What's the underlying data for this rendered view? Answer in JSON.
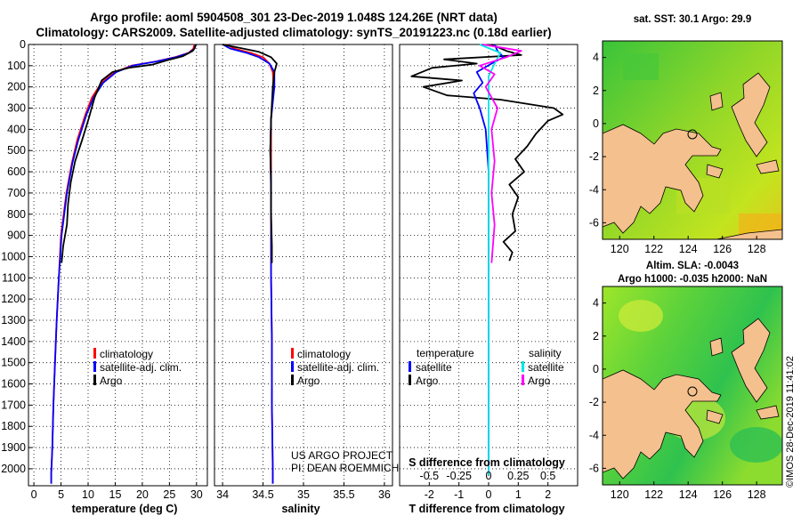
{
  "header": {
    "title_line1": "Argo profile: aoml 5904508_301 23-Dec-2019 1.048S 124.26E (NRT data)",
    "title_line2": "Climatology: CARS2009. Satellite-adjusted climatology: synTS_20191223.nc (0.18d earlier)"
  },
  "colors": {
    "climatology": "#ff0000",
    "satellite": "#0000ff",
    "argo": "#000000",
    "sal_satellite": "#00e5e5",
    "sal_argo": "#ff00ff",
    "land": "#f4c08e"
  },
  "chart_data": [
    {
      "type": "line",
      "title": "",
      "xlabel": "temperature (deg C)",
      "ylabel": "",
      "xlim": [
        -1,
        32
      ],
      "ylim": [
        2080,
        0
      ],
      "xticks": [
        0,
        5,
        10,
        15,
        20,
        25,
        30
      ],
      "yticks": [
        0,
        100,
        200,
        300,
        400,
        500,
        600,
        700,
        800,
        900,
        1000,
        1100,
        1200,
        1300,
        1400,
        1500,
        1600,
        1700,
        1800,
        1900,
        2000
      ],
      "ytick_labels": [
        "0",
        "100",
        "200",
        "300",
        "400",
        "500",
        "600",
        "700",
        "800",
        "900",
        "1000",
        "1100",
        "1200",
        "1300",
        "1400",
        "1500",
        "1600",
        "1700",
        "1800",
        "1900",
        "2000"
      ],
      "series": [
        {
          "name": "climatology",
          "x": [
            29.6,
            29.4,
            28.5,
            26,
            22.5,
            18,
            15,
            12.5,
            10.7,
            9.5,
            8,
            7,
            6,
            5,
            4.6,
            4.2,
            3.9,
            3.6,
            3.4,
            3.2,
            3.2
          ],
          "y": [
            0,
            20,
            40,
            60,
            80,
            100,
            130,
            180,
            250,
            330,
            450,
            560,
            700,
            900,
            1100,
            1300,
            1500,
            1700,
            1900,
            2020,
            2070
          ]
        },
        {
          "name": "satellite-adj. clim.",
          "x": [
            29.8,
            29.6,
            28.6,
            26.2,
            22.6,
            18.2,
            15.2,
            12.8,
            11,
            9.7,
            8.2,
            7.1,
            6.1,
            5.1,
            4.6,
            4.2,
            3.9,
            3.6,
            3.4,
            3.2,
            3.2
          ],
          "y": [
            0,
            20,
            40,
            60,
            80,
            100,
            130,
            180,
            250,
            330,
            450,
            560,
            700,
            900,
            1100,
            1300,
            1500,
            1700,
            1900,
            2020,
            2070
          ]
        },
        {
          "name": "Argo",
          "x": [
            29.9,
            29.7,
            29.3,
            27.5,
            24.5,
            21.8,
            17.5,
            14.5,
            12.5,
            11.2,
            10.1,
            8.9,
            7.6,
            6.8,
            6.3,
            6.1,
            5.4,
            5.1
          ],
          "y": [
            0,
            15,
            30,
            55,
            75,
            95,
            110,
            130,
            170,
            250,
            350,
            450,
            550,
            650,
            750,
            850,
            950,
            1030
          ]
        }
      ],
      "legend": [
        "climatology",
        "satellite-adj. clim.",
        "Argo"
      ],
      "legend_position": "bottom-right"
    },
    {
      "type": "line",
      "title": "",
      "xlabel": "salinity",
      "ylabel": "",
      "xlim": [
        33.9,
        36.1
      ],
      "ylim": [
        2080,
        0
      ],
      "xticks": [
        34,
        34.5,
        35,
        35.5,
        36
      ],
      "series": [
        {
          "name": "climatology",
          "x": [
            34.05,
            34.15,
            34.35,
            34.5,
            34.58,
            34.62,
            34.63,
            34.6,
            34.6,
            34.6,
            34.6,
            34.6,
            34.61,
            34.61,
            34.62,
            34.62
          ],
          "y": [
            0,
            20,
            40,
            60,
            90,
            130,
            200,
            350,
            500,
            700,
            900,
            1100,
            1400,
            1700,
            2000,
            2070
          ]
        },
        {
          "name": "satellite-adj. clim.",
          "x": [
            34.0,
            34.1,
            34.3,
            34.45,
            34.58,
            34.64,
            34.64,
            34.6,
            34.59,
            34.6,
            34.6,
            34.6,
            34.61,
            34.61,
            34.62,
            34.62
          ],
          "y": [
            0,
            20,
            40,
            60,
            90,
            130,
            200,
            350,
            500,
            700,
            900,
            1100,
            1400,
            1700,
            2000,
            2070
          ]
        },
        {
          "name": "Argo",
          "x": [
            34.0,
            34.2,
            34.45,
            34.6,
            34.67,
            34.64,
            34.62,
            34.6,
            34.59,
            34.6,
            34.6,
            34.61,
            34.61
          ],
          "y": [
            0,
            15,
            35,
            60,
            90,
            130,
            200,
            350,
            500,
            650,
            800,
            950,
            1030
          ]
        }
      ],
      "legend": [
        "climatology",
        "satellite-adj. clim.",
        "Argo"
      ],
      "legend_position": "bottom-right",
      "credit_line1": "US ARGO PROJECT",
      "credit_line2": "PI: DEAN ROEMMICH"
    },
    {
      "type": "line",
      "title": "",
      "xlabel": "T difference from climatology",
      "top_xlabel": "S difference from climatology",
      "xlim": [
        -3,
        3
      ],
      "ylim": [
        2080,
        0
      ],
      "xticks": [
        -2,
        -1,
        0,
        1,
        2
      ],
      "top_xtick_labels": [
        "-0.5",
        "-0.25",
        "0",
        "0.25",
        "0.5"
      ],
      "top_xticks_in_t_units": [
        -2,
        -1,
        0,
        1,
        2
      ],
      "series": [
        {
          "name": "temperature Argo",
          "x": [
            0.1,
            0.6,
            1.1,
            -1.5,
            -0.4,
            -1.9,
            -2.6,
            -0.9,
            -2.2,
            -1.4,
            0.4,
            2.2,
            2.5,
            2.0,
            1.6,
            1.3,
            0.9,
            1.2,
            0.7,
            1.0,
            0.8,
            0.9,
            0.5,
            0.8,
            0.7
          ],
          "y": [
            0,
            30,
            50,
            70,
            90,
            110,
            150,
            170,
            200,
            240,
            260,
            300,
            330,
            360,
            420,
            480,
            540,
            600,
            660,
            720,
            800,
            880,
            930,
            980,
            1020
          ]
        },
        {
          "name": "temperature satellite",
          "x": [
            0.2,
            0.3,
            0.5,
            0.1,
            -0.4,
            -0.2,
            -0.5,
            -0.3,
            -0.1,
            0,
            0,
            0,
            0,
            0,
            0
          ],
          "y": [
            0,
            30,
            60,
            90,
            130,
            180,
            230,
            300,
            400,
            600,
            900,
            1200,
            1500,
            1800,
            2030
          ]
        },
        {
          "name": "salinity satellite",
          "x": [
            -0.3,
            0.4,
            0.2,
            0,
            0,
            0,
            0,
            0,
            0,
            0
          ],
          "y": [
            0,
            40,
            90,
            150,
            300,
            500,
            800,
            1200,
            1600,
            2030
          ]
        },
        {
          "name": "salinity Argo",
          "x": [
            -0.2,
            1.1,
            0.6,
            -0.3,
            0.2,
            -0.1,
            0.3,
            0.1,
            0.2,
            0.1,
            0.2,
            0.1
          ],
          "y": [
            0,
            30,
            60,
            100,
            140,
            200,
            300,
            400,
            550,
            700,
            850,
            1030
          ]
        }
      ],
      "legend_left": {
        "header": "temperature",
        "items": [
          "satellite",
          "Argo"
        ]
      },
      "legend_right": {
        "header": "salinity",
        "items": [
          "satellite",
          "Argo"
        ]
      },
      "legend_position": "middle"
    }
  ],
  "maps": [
    {
      "title_line1": "sat. SST: 30.1 Argo: 29.9",
      "title_line2": "",
      "xticks": [
        "120",
        "122",
        "124",
        "126",
        "128"
      ],
      "yticks": [
        "4",
        "2",
        "0",
        "-2",
        "-4",
        "-6"
      ]
    },
    {
      "title_line1": "Altim. SLA: -0.0043",
      "title_line2": "Argo h1000: -0.035 h2000: NaN",
      "xticks": [
        "120",
        "122",
        "124",
        "126",
        "128"
      ],
      "yticks": [
        "4",
        "2",
        "0",
        "-2",
        "-4",
        "-6"
      ]
    }
  ],
  "footer": {
    "imos_stamp": "©IMOS 28-Dec-2019 11:41:02"
  }
}
